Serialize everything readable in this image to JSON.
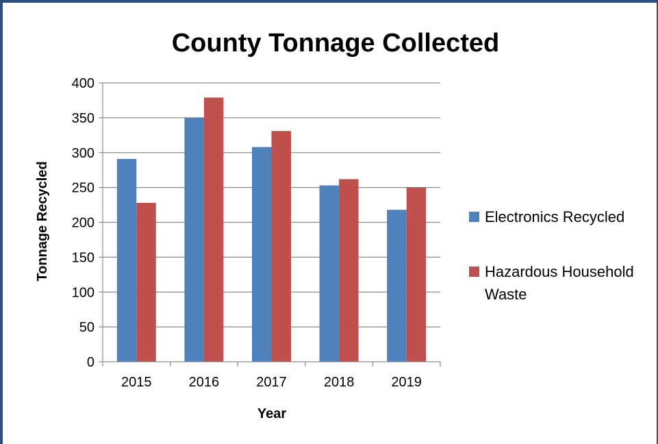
{
  "chart_data": {
    "type": "bar",
    "title": "County Tonnage Collected",
    "xlabel": "Year",
    "ylabel": "Tonnage Recycled",
    "categories": [
      "2015",
      "2016",
      "2017",
      "2018",
      "2019"
    ],
    "series": [
      {
        "name": "Electronics Recycled",
        "color": "#4f81bd",
        "values": [
          291,
          350,
          308,
          253,
          218
        ]
      },
      {
        "name": "Hazardous Household Waste",
        "color": "#c0504d",
        "values": [
          228,
          379,
          331,
          262,
          250
        ]
      }
    ],
    "ylim": [
      0,
      400
    ],
    "yticks": [
      0,
      50,
      100,
      150,
      200,
      250,
      300,
      350,
      400
    ],
    "grid": true,
    "legend_position": "right"
  }
}
